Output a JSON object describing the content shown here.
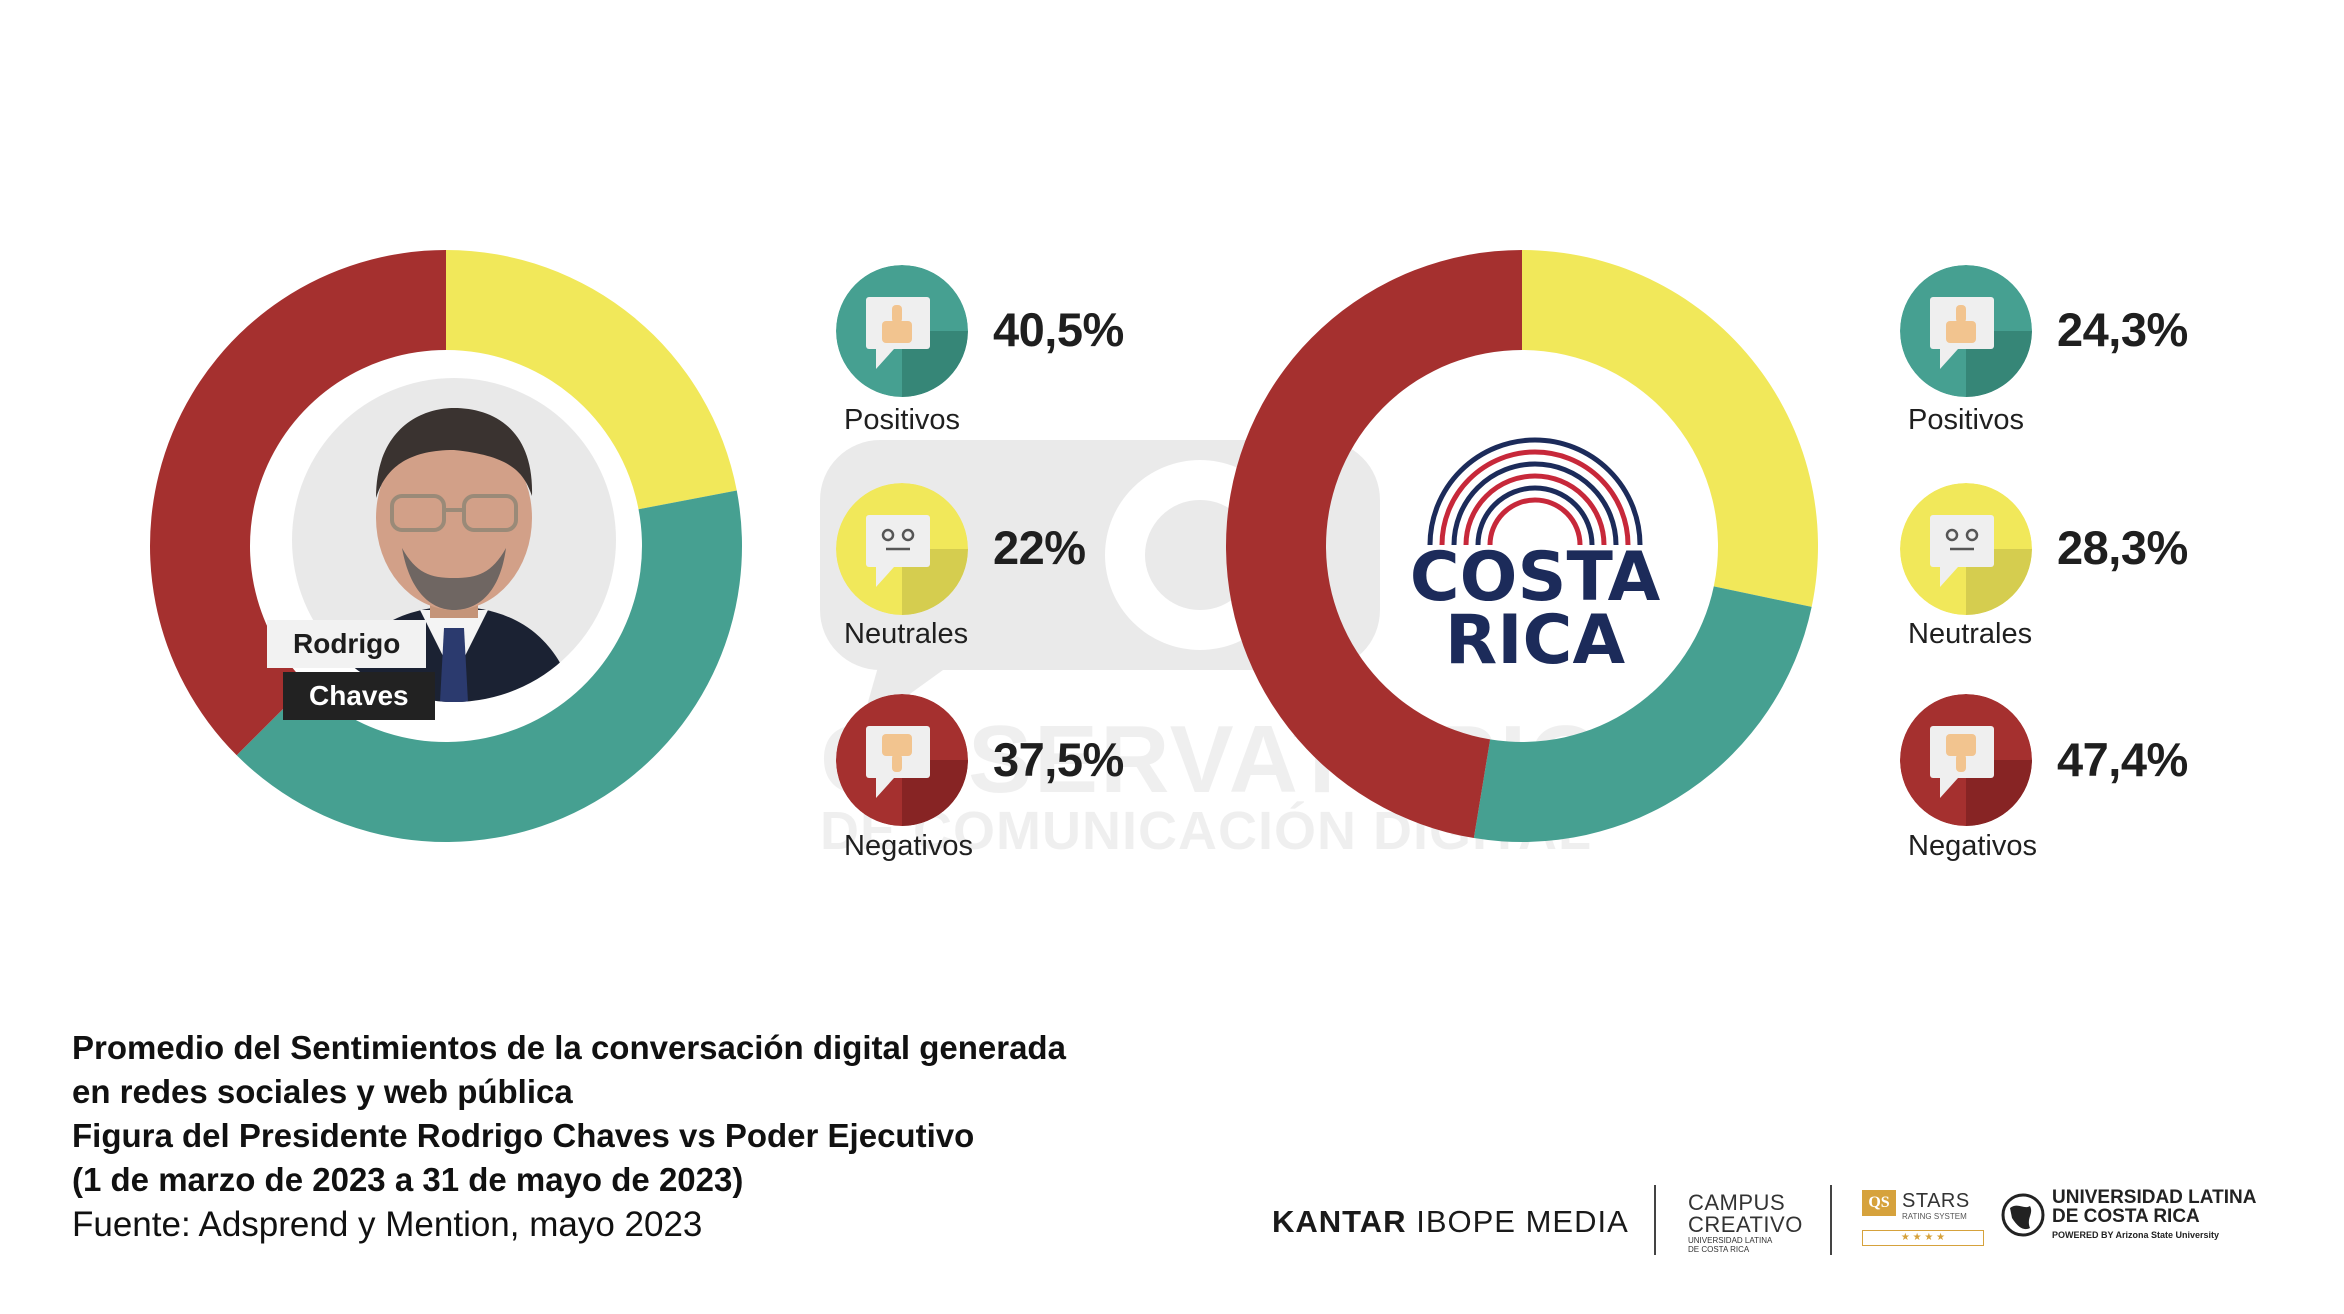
{
  "chart_data": [
    {
      "type": "pie",
      "variant": "donut",
      "center_label": [
        "Rodrigo",
        "Chaves"
      ],
      "slices": [
        {
          "label": "Positivos",
          "value": 40.5,
          "display": "40,5%",
          "color": "#46a091"
        },
        {
          "label": "Neutrales",
          "value": 22,
          "display": "22%",
          "color": "#f1e85a"
        },
        {
          "label": "Negativos",
          "value": 37.5,
          "display": "37,5%",
          "color": "#a5302f"
        }
      ]
    },
    {
      "type": "pie",
      "variant": "donut",
      "center_logo": [
        "COSTA",
        "RICA"
      ],
      "slices": [
        {
          "label": "Positivos",
          "value": 24.3,
          "display": "24,3%",
          "color": "#46a091"
        },
        {
          "label": "Neutrales",
          "value": 28.3,
          "display": "28,3%",
          "color": "#f1e85a"
        },
        {
          "label": "Negativos",
          "value": 47.4,
          "display": "47,4%",
          "color": "#a5302f"
        }
      ]
    }
  ],
  "legend_icons": {
    "Positivos": "thumbs-up-icon",
    "Neutrales": "neutral-face-icon",
    "Negativos": "thumbs-down-icon"
  },
  "watermark": {
    "line1": "OBSERVATORIO",
    "line2": "DE COMUNICACIÓN DIGITAL"
  },
  "caption": {
    "line1": "Promedio del Sentimientos de la conversación digital generada",
    "line2": "en redes sociales y web pública",
    "line3": "Figura del Presidente Rodrigo Chaves vs Poder Ejecutivo",
    "line4": "(1 de marzo de 2023 a 31 de mayo de 2023)",
    "source": "Fuente: Adsprend y Mention, mayo 2023"
  },
  "footer": {
    "kantar_bold": "KANTAR",
    "kantar_rest": "IBOPE MEDIA",
    "campus_1": "CAMPUS",
    "campus_2": "CREATIVO",
    "campus_sub1": "UNIVERSIDAD LATINA",
    "campus_sub2": "DE COSTA RICA",
    "qs": "QS",
    "stars": "STARS",
    "stars_sub": "RATING SYSTEM",
    "stars_row": "★ ★ ★ ★",
    "ulatina_1": "UNIVERSIDAD LATINA",
    "ulatina_2": "DE COSTA RICA",
    "ulatina_3": "POWERED BY Arizona State University"
  }
}
